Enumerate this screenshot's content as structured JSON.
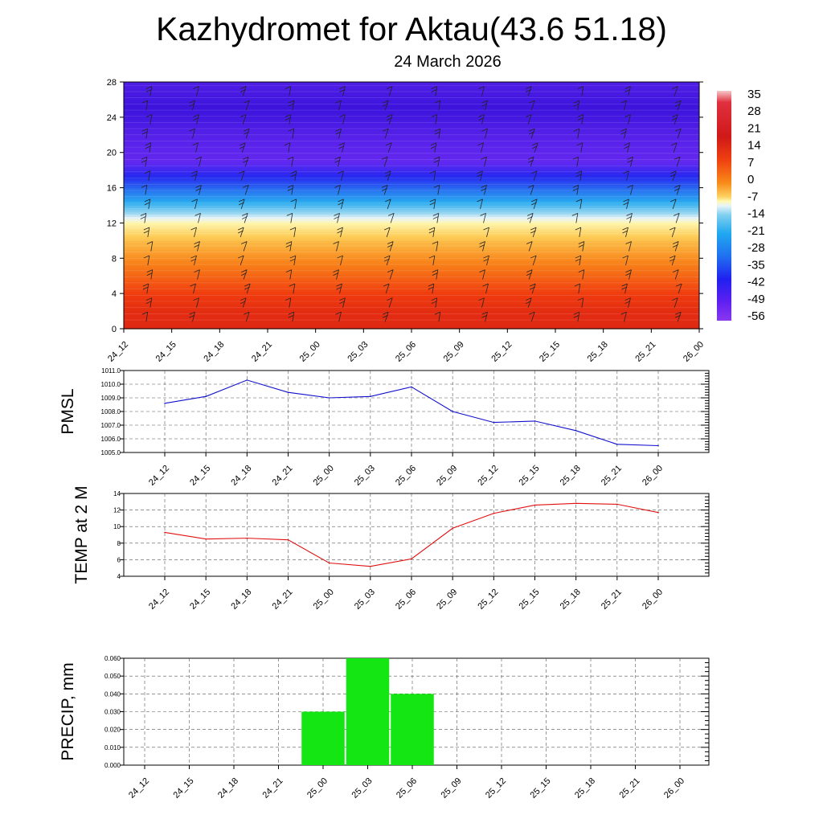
{
  "title": "Kazhydromet for Aktau(43.6 51.18)",
  "subtitle": "24 March 2026",
  "times": [
    "24_12",
    "24_15",
    "24_18",
    "24_21",
    "25_00",
    "25_03",
    "25_06",
    "25_09",
    "25_12",
    "25_15",
    "25_18",
    "25_21",
    "26_00"
  ],
  "colors": {
    "pmsl_line": "#1010cc",
    "temp_line": "#e01010",
    "precip_bar": "#14e614",
    "grid": "#555555"
  },
  "chart_data": [
    {
      "id": "cross_section",
      "type": "heatmap",
      "title": "",
      "xlabel": "",
      "ylabel": "",
      "ylim": [
        0,
        28
      ],
      "yticks": [
        "0",
        "4",
        "8",
        "12",
        "16",
        "20",
        "24",
        "28"
      ],
      "colorbar_labels": [
        "35",
        "28",
        "21",
        "14",
        "7",
        "0",
        "-7",
        "-14",
        "-21",
        "-28",
        "-35",
        "-42",
        "-49",
        "-56"
      ],
      "temperature_profile": [
        {
          "height": 0,
          "value": 18
        },
        {
          "height": 2,
          "value": 17
        },
        {
          "height": 4,
          "value": 14
        },
        {
          "height": 7,
          "value": 8
        },
        {
          "height": 10,
          "value": 2
        },
        {
          "height": 12,
          "value": -4
        },
        {
          "height": 13,
          "value": -14
        },
        {
          "height": 15,
          "value": -28
        },
        {
          "height": 17,
          "value": -42
        },
        {
          "height": 19,
          "value": -52
        },
        {
          "height": 22,
          "value": -55
        },
        {
          "height": 25,
          "value": -60
        },
        {
          "height": 28,
          "value": -56
        }
      ],
      "wind_barbs": "present at each time and level"
    },
    {
      "id": "pmsl",
      "type": "line",
      "ylabel": "PMSL",
      "ylim": [
        1005.0,
        1011.0
      ],
      "yticks": [
        "1005.0",
        "1006.0",
        "1007.0",
        "1008.0",
        "1009.0",
        "1010.0",
        "1011.0"
      ],
      "categories": [
        "24_12",
        "24_15",
        "24_18",
        "24_21",
        "25_00",
        "25_03",
        "25_06",
        "25_09",
        "25_12",
        "25_15",
        "25_18",
        "25_21",
        "26_00"
      ],
      "values": [
        1008.6,
        1009.1,
        1010.3,
        1009.4,
        1009.0,
        1009.1,
        1009.8,
        1008.0,
        1007.2,
        1007.3,
        1006.6,
        1005.6,
        1005.5
      ]
    },
    {
      "id": "temp2m",
      "type": "line",
      "ylabel": "TEMP at 2 M",
      "ylim": [
        4,
        14
      ],
      "yticks": [
        "4",
        "6",
        "8",
        "10",
        "12",
        "14"
      ],
      "categories": [
        "24_12",
        "24_15",
        "24_18",
        "24_21",
        "25_00",
        "25_03",
        "25_06",
        "25_09",
        "25_12",
        "25_15",
        "25_18",
        "25_21",
        "26_00"
      ],
      "values": [
        9.3,
        8.5,
        8.6,
        8.4,
        5.6,
        5.2,
        6.1,
        9.8,
        11.6,
        12.6,
        12.8,
        12.7,
        11.7
      ]
    },
    {
      "id": "precip",
      "type": "bar",
      "ylabel": "PRECIP, mm",
      "ylim": [
        0,
        0.06
      ],
      "yticks": [
        "0.000",
        "0.010",
        "0.020",
        "0.030",
        "0.040",
        "0.050",
        "0.060"
      ],
      "categories": [
        "24_12",
        "24_15",
        "24_18",
        "24_21",
        "25_00",
        "25_03",
        "25_06",
        "25_09",
        "25_12",
        "25_15",
        "25_18",
        "25_21",
        "26_00"
      ],
      "values": [
        0,
        0,
        0,
        0,
        0.03,
        0.06,
        0.04,
        0,
        0,
        0,
        0,
        0,
        0
      ]
    }
  ]
}
